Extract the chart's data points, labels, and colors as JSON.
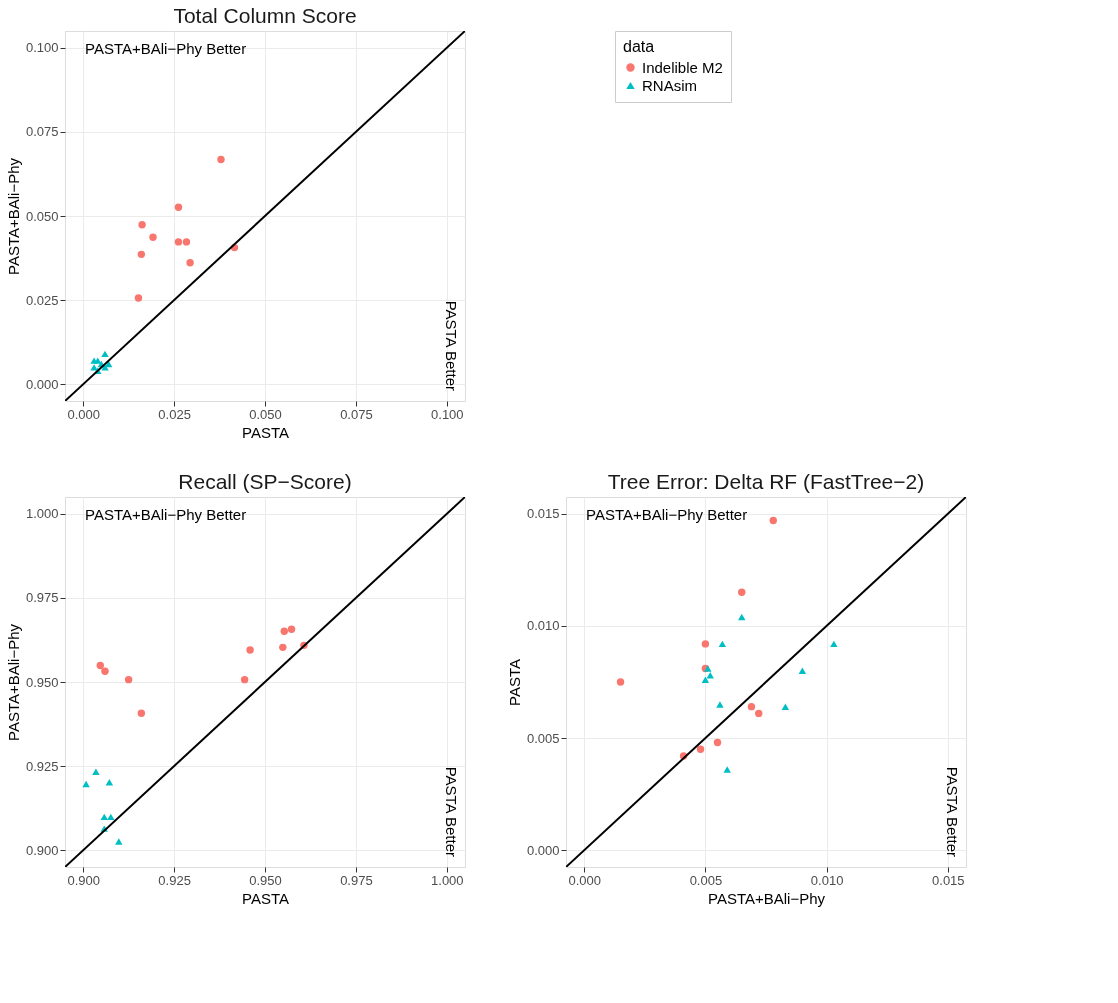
{
  "chart_data": [
    {
      "type": "scatter",
      "title": "Total Column Score",
      "xlabel": "PASTA",
      "ylabel": "PASTA+BAli−Phy",
      "legend_title": "data",
      "legend": "right",
      "grid": true,
      "xlim": [
        -0.005,
        0.105
      ],
      "ylim": [
        -0.005,
        0.105
      ],
      "xticks": [
        {
          "value": 0,
          "label": "0.000"
        },
        {
          "value": 0.025,
          "label": "0.025"
        },
        {
          "value": 0.05,
          "label": "0.050"
        },
        {
          "value": 0.075,
          "label": "0.075"
        },
        {
          "value": 0.1,
          "label": "0.100"
        }
      ],
      "yticks": [
        {
          "value": 0,
          "label": "0.000"
        },
        {
          "value": 0.025,
          "label": "0.025"
        },
        {
          "value": 0.05,
          "label": "0.050"
        },
        {
          "value": 0.075,
          "label": "0.075"
        },
        {
          "value": 0.1,
          "label": "0.100"
        }
      ],
      "annotations": [
        "PASTA+BAli−Phy Better",
        "PASTA Better"
      ],
      "series": [
        {
          "name": "Indelible M2",
          "color": "#f8766d",
          "marker": "circle",
          "x": [
            0.0379,
            0.0262,
            0.0162,
            0.0192,
            0.0262,
            0.0284,
            0.0416,
            0.016,
            0.0294,
            0.0152
          ],
          "values": [
            0.0668,
            0.0526,
            0.0474,
            0.0437,
            0.0423,
            0.0423,
            0.0406,
            0.0386,
            0.0361,
            0.0256
          ]
        },
        {
          "name": "RNAsim",
          "color": "#00bfc4",
          "marker": "triangle",
          "x": [
            0.006,
            0.003,
            0.004,
            0.005,
            0.007,
            0.003,
            0.004,
            0.005,
            0.006
          ],
          "values": [
            0.009,
            0.007,
            0.007,
            0.006,
            0.006,
            0.005,
            0.004,
            null,
            0.005
          ]
        },
        {
          "type": "line",
          "color": "#000000",
          "line_style": "solid",
          "x": [
            -0.005,
            0.105
          ],
          "values": [
            -0.005,
            0.105
          ]
        }
      ]
    },
    {
      "type": "scatter",
      "title": "Recall (SP−Score)",
      "xlabel": "PASTA",
      "ylabel": "PASTA+BAli−Phy",
      "legend": false,
      "grid": true,
      "xlim": [
        0.895,
        1.005
      ],
      "ylim": [
        0.895,
        1.005
      ],
      "xticks": [
        {
          "value": 0.9,
          "label": "0.900"
        },
        {
          "value": 0.925,
          "label": "0.925"
        },
        {
          "value": 0.95,
          "label": "0.950"
        },
        {
          "value": 0.975,
          "label": "0.975"
        },
        {
          "value": 1.0,
          "label": "1.000"
        }
      ],
      "yticks": [
        {
          "value": 0.9,
          "label": "0.900"
        },
        {
          "value": 0.925,
          "label": "0.925"
        },
        {
          "value": 0.95,
          "label": "0.950"
        },
        {
          "value": 0.975,
          "label": "0.975"
        },
        {
          "value": 1.0,
          "label": "1.000"
        }
      ],
      "annotations": [
        "PASTA+BAli−Phy Better",
        "PASTA Better"
      ],
      "series": [
        {
          "color": "#f8766d",
          "marker": "circle",
          "x": [
            0.9047,
            0.906,
            0.9125,
            0.916,
            0.9444,
            0.9459,
            0.9549,
            0.9553,
            0.9573,
            0.9607
          ],
          "values": [
            0.9549,
            0.9532,
            0.9507,
            0.9407,
            0.9507,
            0.9595,
            0.9603,
            0.9651,
            0.9657,
            0.9609
          ]
        },
        {
          "color": "#00bfc4",
          "marker": "triangle",
          "x": [
            0.9008,
            0.9035,
            0.9072,
            0.9058,
            0.9076,
            0.9058,
            0.9098
          ],
          "values": [
            0.9197,
            0.9233,
            0.9202,
            0.9099,
            0.9099,
            0.9064,
            0.9026
          ]
        },
        {
          "type": "line",
          "color": "#000000",
          "line_style": "solid",
          "x": [
            0.895,
            1.005
          ],
          "values": [
            0.895,
            1.005
          ]
        }
      ]
    },
    {
      "type": "scatter",
      "title": "Tree Error: Delta RF (FastTree−2)",
      "xlabel": "PASTA+BAli−Phy",
      "ylabel": "PASTA",
      "legend": false,
      "grid": true,
      "xlim": [
        -0.00075,
        0.01575
      ],
      "ylim": [
        -0.00075,
        0.01575
      ],
      "xticks": [
        {
          "value": 0,
          "label": "0.000"
        },
        {
          "value": 0.005,
          "label": "0.005"
        },
        {
          "value": 0.01,
          "label": "0.010"
        },
        {
          "value": 0.015,
          "label": "0.015"
        }
      ],
      "yticks": [
        {
          "value": 0,
          "label": "0.000"
        },
        {
          "value": 0.005,
          "label": "0.005"
        },
        {
          "value": 0.01,
          "label": "0.010"
        },
        {
          "value": 0.015,
          "label": "0.015"
        }
      ],
      "annotations": [
        "PASTA+BAli−Phy Better",
        "PASTA Better"
      ],
      "series": [
        {
          "color": "#f8766d",
          "marker": "circle",
          "x": [
            0.0078,
            0.0065,
            0.005,
            0.005,
            0.0015,
            0.0069,
            0.0072,
            0.0055,
            0.0048,
            0.0041
          ],
          "values": [
            0.0147,
            0.0115,
            0.0092,
            0.0081,
            0.0075,
            0.0064,
            0.0061,
            0.0048,
            0.0045,
            0.0042
          ]
        },
        {
          "color": "#00bfc4",
          "marker": "triangle",
          "x": [
            0.0065,
            0.0057,
            0.0103,
            0.0051,
            0.009,
            0.0052,
            0.005,
            0.0056,
            0.0083,
            0.0059
          ],
          "values": [
            0.0104,
            0.0092,
            0.0092,
            0.0081,
            0.008,
            0.0078,
            0.0076,
            0.0065,
            0.0064,
            0.0036
          ]
        },
        {
          "type": "line",
          "color": "#000000",
          "line_style": "solid",
          "x": [
            -0.00075,
            0.01575
          ],
          "values": [
            -0.00075,
            0.01575
          ]
        }
      ]
    }
  ]
}
